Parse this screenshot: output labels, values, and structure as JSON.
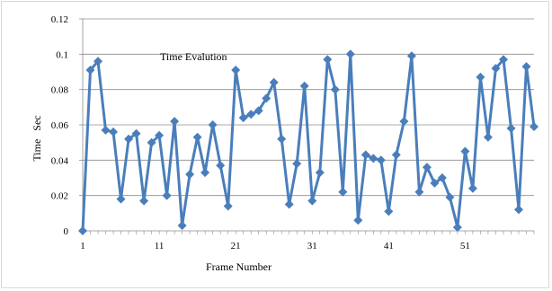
{
  "chart_data": {
    "type": "line",
    "title": "Time Evalution",
    "xlabel": "Frame Number",
    "ylabel": "Time   Sec",
    "ylim": [
      0,
      0.12
    ],
    "y_ticks": [
      "0",
      "0.02",
      "0.04",
      "0.06",
      "0.08",
      "0.1",
      "0.12"
    ],
    "x_ticks": [
      "1",
      "11",
      "21",
      "31",
      "41",
      "51"
    ],
    "x_tick_values": [
      1,
      11,
      21,
      31,
      41,
      51
    ],
    "xlim": [
      1,
      60
    ],
    "grid": "horizontal",
    "legend": "none",
    "series": [
      {
        "color": "#4a7ebb",
        "marker": "diamond",
        "x": [
          1,
          2,
          3,
          4,
          5,
          6,
          7,
          8,
          9,
          10,
          11,
          12,
          13,
          14,
          15,
          16,
          17,
          18,
          19,
          20,
          21,
          22,
          23,
          24,
          25,
          26,
          27,
          28,
          29,
          30,
          31,
          32,
          33,
          34,
          35,
          36,
          37,
          38,
          39,
          40,
          41,
          42,
          43,
          44,
          45,
          46,
          47,
          48,
          49,
          50,
          51,
          52,
          53,
          54,
          55,
          56,
          57,
          58,
          59,
          60
        ],
        "values": [
          0.0,
          0.091,
          0.096,
          0.057,
          0.056,
          0.018,
          0.052,
          0.055,
          0.017,
          0.05,
          0.054,
          0.02,
          0.062,
          0.003,
          0.032,
          0.053,
          0.033,
          0.06,
          0.037,
          0.014,
          0.091,
          0.064,
          0.066,
          0.068,
          0.075,
          0.084,
          0.052,
          0.015,
          0.038,
          0.082,
          0.017,
          0.033,
          0.097,
          0.08,
          0.022,
          0.1,
          0.006,
          0.043,
          0.041,
          0.04,
          0.011,
          0.043,
          0.062,
          0.099,
          0.022,
          0.036,
          0.027,
          0.03,
          0.019,
          0.002,
          0.045,
          0.024,
          0.087,
          0.053,
          0.092,
          0.097,
          0.058,
          0.012,
          0.093,
          0.059
        ]
      }
    ]
  }
}
